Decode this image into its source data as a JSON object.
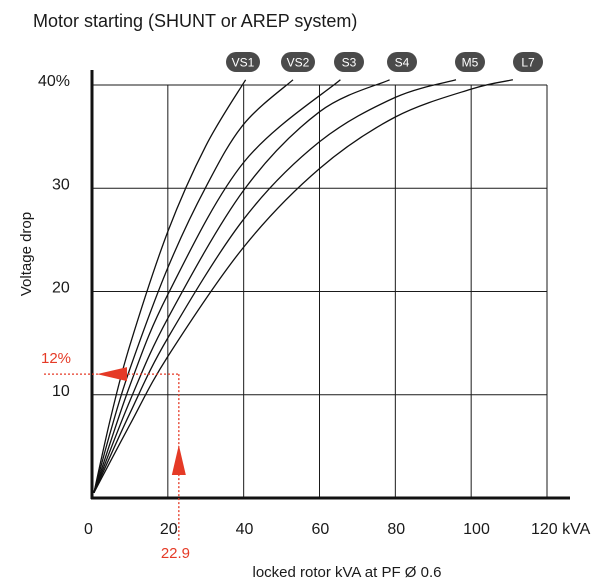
{
  "chart_data": {
    "type": "line",
    "title": "Motor starting (SHUNT or AREP system)",
    "xlabel": "locked rotor kVA at PF Ø 0.6",
    "ylabel": "Voltage drop",
    "xlim": [
      0,
      120
    ],
    "ylim": [
      0,
      40
    ],
    "x_ticks": [
      "0",
      "20",
      "40",
      "60",
      "80",
      "100",
      "120 kVA"
    ],
    "y_ticks": [
      "10",
      "20",
      "30",
      "40%"
    ],
    "grid": true,
    "series": [
      {
        "name": "VS1",
        "x": [
          0.5,
          5,
          10,
          20,
          30,
          40.5
        ],
        "y": [
          0.5,
          7.9,
          14.8,
          25.8,
          34.1,
          40.5
        ]
      },
      {
        "name": "VS2",
        "x": [
          0.5,
          5,
          10,
          20,
          30,
          40,
          53
        ],
        "y": [
          0.5,
          6.6,
          12.5,
          22.3,
          30.1,
          36.2,
          40.5
        ]
      },
      {
        "name": "S3",
        "x": [
          0.5,
          10,
          20,
          40,
          65.5
        ],
        "y": [
          0.5,
          10.9,
          19.7,
          32.5,
          40.5
        ]
      },
      {
        "name": "S4",
        "x": [
          0.5,
          10,
          20,
          40,
          60,
          78.5
        ],
        "y": [
          0.5,
          9.4,
          17.4,
          29.8,
          37.4,
          40.5
        ]
      },
      {
        "name": "M5",
        "x": [
          0.5,
          10,
          20,
          40,
          60,
          80,
          96
        ],
        "y": [
          0.5,
          8.2,
          15.5,
          27.0,
          34.5,
          38.8,
          40.5
        ]
      },
      {
        "name": "L7",
        "x": [
          0.5,
          10,
          20,
          40,
          60,
          80,
          100,
          111
        ],
        "y": [
          0.5,
          7.1,
          13.7,
          24.3,
          31.9,
          36.9,
          39.6,
          40.5
        ]
      }
    ],
    "annotations": [
      {
        "type": "reading",
        "x": 22.9,
        "y": 12,
        "x_label": "22.9",
        "y_label": "12%",
        "color": "#e53a26"
      }
    ]
  },
  "colors": {
    "badge": "#4a4a4a",
    "annotation": "#e53a26",
    "ink": "#111111"
  }
}
